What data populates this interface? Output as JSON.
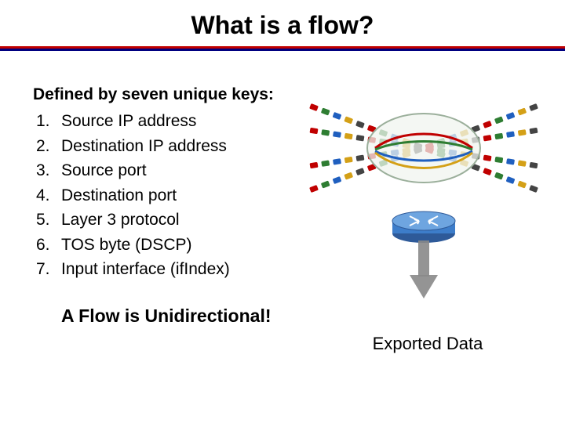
{
  "title": "What is a flow?",
  "title_underline": {
    "top_color": "#c00000",
    "bottom_color": "#000080"
  },
  "definition_heading": "Defined by seven unique keys:",
  "keys": [
    {
      "n": "1.",
      "t": "Source IP address"
    },
    {
      "n": "2.",
      "t": "Destination IP address"
    },
    {
      "n": "3.",
      "t": "Source port"
    },
    {
      "n": "4.",
      "t": "Destination port"
    },
    {
      "n": "5.",
      "t": "Layer 3 protocol"
    },
    {
      "n": "6.",
      "t": "TOS byte (DSCP)"
    },
    {
      "n": "7.",
      "t": "Input interface (ifIndex)"
    }
  ],
  "callout": "A Flow is Unidirectional!",
  "exported_label": "Exported Data",
  "diagram": {
    "packet_colors": [
      "#c00000",
      "#2e7d32",
      "#1f5fbf",
      "#d4a017",
      "#444444"
    ],
    "lens_fill": "#F0F4EF",
    "lens_stroke": "#9baf9b",
    "router_body": "#3d7dca",
    "router_trim": "#2e5a99",
    "router_top": "#6ea5e0",
    "arrow_fill": "#888888"
  }
}
